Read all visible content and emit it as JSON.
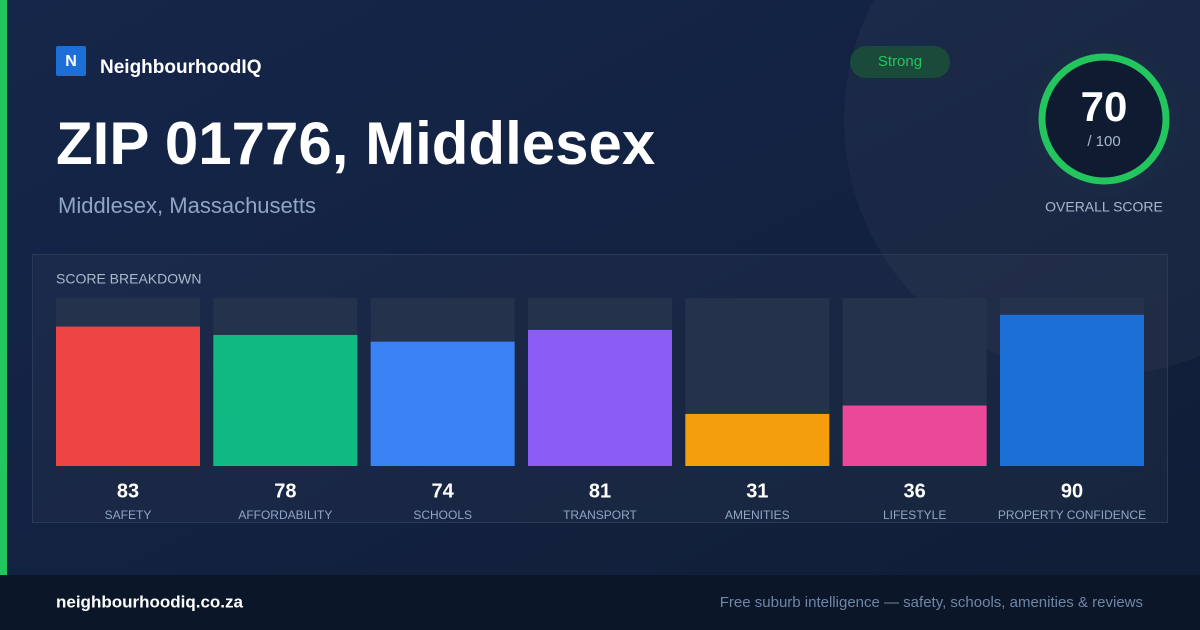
{
  "brand": "NeighbourhoodIQ",
  "logo_letter": "N",
  "title": "ZIP 01776, Middlesex",
  "subtitle": "Middlesex, Massachusetts",
  "badge": "Strong",
  "overall": {
    "score": "70",
    "out_of": "/ 100",
    "label": "OVERALL SCORE"
  },
  "chart_data": {
    "type": "bar",
    "title": "SCORE BREAKDOWN",
    "categories": [
      "SAFETY",
      "AFFORDABILITY",
      "SCHOOLS",
      "TRANSPORT",
      "AMENITIES",
      "LIFESTYLE",
      "PROPERTY CONFIDENCE"
    ],
    "values": [
      83,
      78,
      74,
      81,
      31,
      36,
      90
    ],
    "colors": [
      "#ef4444",
      "#10b981",
      "#3b82f6",
      "#8b5cf6",
      "#f59e0b",
      "#ec4899",
      "#1d6fd8"
    ],
    "ylim": [
      0,
      100
    ]
  },
  "footer": {
    "site": "neighbourhoodiq.co.za",
    "tagline": "Free suburb intelligence — safety, schools, amenities & reviews"
  }
}
